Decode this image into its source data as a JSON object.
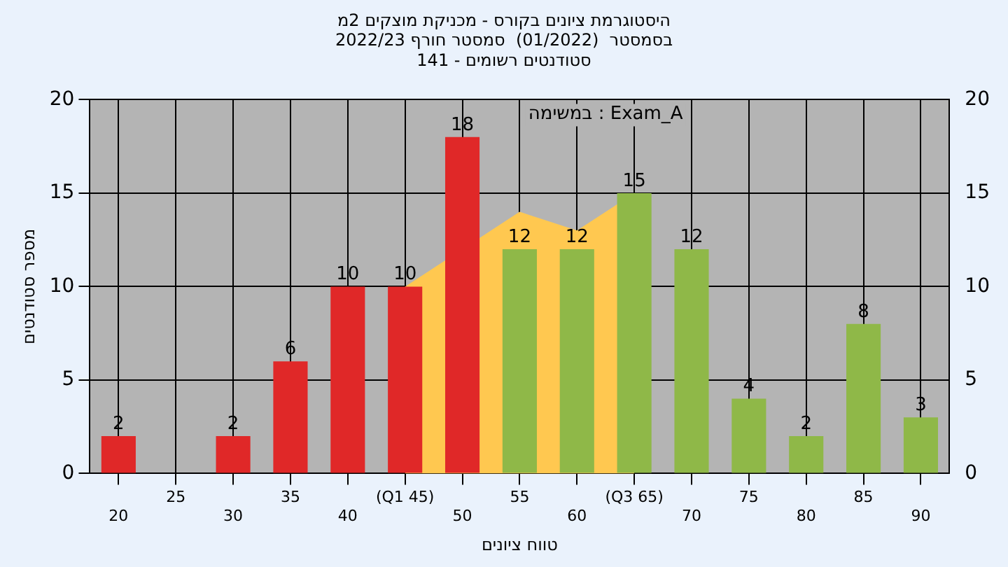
{
  "chart_data": {
    "type": "bar",
    "title": "היסטוגרמת ציונים בקורס - מכניקת מוצקים 2מ",
    "subtitle": "בסמסטר  (01/2022)  סמסטר חורף 2022/23\nסטודנטים רשומים - 141",
    "xlabel": "טווח ציונים",
    "ylabel": "מספר סטודנטים",
    "annotations": [
      "במשימה : Exam_A"
    ],
    "categories": [
      "20",
      "25",
      "30",
      "35",
      "40",
      "(Q1 45)",
      "50",
      "55",
      "60",
      "(Q3 65)",
      "70",
      "75",
      "80",
      "85",
      "90"
    ],
    "series": [
      {
        "type": "area",
        "color": "#ffc850",
        "values": [
          null,
          null,
          null,
          null,
          null,
          10,
          null,
          14,
          13,
          15,
          null,
          null,
          null,
          null,
          null
        ]
      },
      {
        "colors": [
          "#e02828",
          "#e02828",
          "#e02828",
          "#e02828",
          "#e02828",
          "#e02828",
          "#e02828",
          "#8fb848",
          "#8fb848",
          "#8fb848",
          "#8fb848",
          "#8fb848",
          "#8fb848",
          "#8fb848",
          "#8fb848"
        ],
        "values": [
          2,
          null,
          2,
          6,
          10,
          10,
          18,
          12,
          12,
          15,
          12,
          4,
          2,
          8,
          3
        ],
        "value_labels": [
          "2",
          null,
          "2",
          "6",
          "10",
          "10",
          "18",
          "12",
          "12",
          "15",
          "12",
          "4",
          "2",
          "8",
          "3"
        ]
      }
    ],
    "ylim": [
      0,
      20
    ],
    "yticks": [
      0,
      5,
      10,
      15,
      20
    ],
    "y2lim": [
      0,
      20
    ],
    "y2ticks": [
      0,
      5,
      10,
      15,
      20
    ],
    "grid": true,
    "legend": false
  }
}
